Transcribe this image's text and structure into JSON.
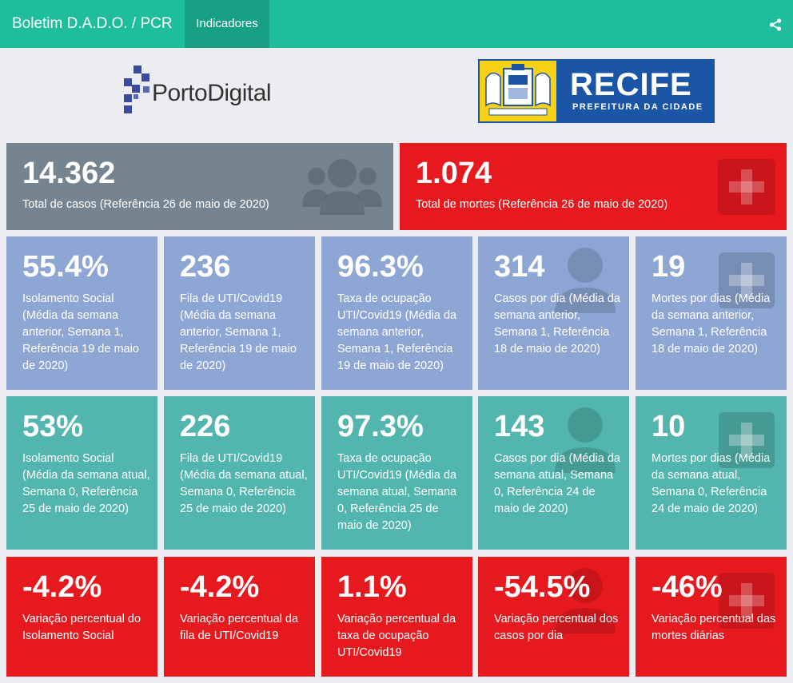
{
  "header": {
    "brand": "Boletim D.A.D.O. / PCR",
    "tab": "Indicadores",
    "share_icon": "share-icon"
  },
  "logos": {
    "porto_digital": "PortoDigital",
    "recife_title": "RECIFE",
    "recife_subtitle": "PREFEITURA DA CIDADE"
  },
  "colors": {
    "navbar": "#1ebd9b",
    "tab_active": "#17a083",
    "gray_card": "#76848f",
    "red_card": "#e6191e",
    "blue_card": "#8ea6d4",
    "teal_card": "#52b6ae"
  },
  "summary": [
    {
      "value": "14.362",
      "label": "Total de casos (Referência 26 de maio de 2020)",
      "icon": "users-icon"
    },
    {
      "value": "1.074",
      "label": "Total de mortes (Referência 26 de maio de 2020)",
      "icon": "plus-square-icon"
    }
  ],
  "previous_week": [
    {
      "value": "55.4%",
      "label": "Isolamento Social (Média da semana anterior, Semana 1, Referência 19 de maio de 2020)"
    },
    {
      "value": "236",
      "label": "Fila de UTI/Covid19 (Média da semana anterior, Semana 1, Referência 19 de maio de 2020)"
    },
    {
      "value": "96.3%",
      "label": "Taxa de ocupação UTI/Covid19 (Média da semana anterior, Semana 1, Referência 19 de maio de 2020)"
    },
    {
      "value": "314",
      "label": "Casos por dia (Média da semana anterior, Semana 1, Referência 18 de maio de 2020)",
      "icon": "user-icon"
    },
    {
      "value": "19",
      "label": "Mortes por dias (Média da semana anterior, Semana 1, Referência 18 de maio de 2020)",
      "icon": "plus-square-icon"
    }
  ],
  "current_week": [
    {
      "value": "53%",
      "label": "Isolamento Social (Média da semana atual, Semana 0, Referência 25 de maio de 2020)"
    },
    {
      "value": "226",
      "label": "Fila de UTI/Covid19 (Média da semana atual, Semana 0, Referência 25 de maio de 2020)"
    },
    {
      "value": "97.3%",
      "label": "Taxa de ocupação UTI/Covid19 (Média da semana atual, Semana 0, Referência 25 de maio de 2020)"
    },
    {
      "value": "143",
      "label": "Casos por dia (Média da semana atual, Semana 0, Referência 24 de maio de 2020)",
      "icon": "user-icon"
    },
    {
      "value": "10",
      "label": "Mortes por dias (Média da semana atual, Semana 0, Referência 24 de maio de 2020)",
      "icon": "plus-square-icon"
    }
  ],
  "variation": [
    {
      "value": "-4.2%",
      "label": "Variação percentual do Isolamento Social"
    },
    {
      "value": "-4.2%",
      "label": "Variação percentual da fila de UTI/Covid19"
    },
    {
      "value": "1.1%",
      "label": "Variação percentual da taxa de ocupação UTI/Covid19"
    },
    {
      "value": "-54.5%",
      "label": "Variação percentual dos casos por dia",
      "icon": "user-icon"
    },
    {
      "value": "-46%",
      "label": "Variação percentual das mortes diárias",
      "icon": "plus-square-icon"
    }
  ]
}
